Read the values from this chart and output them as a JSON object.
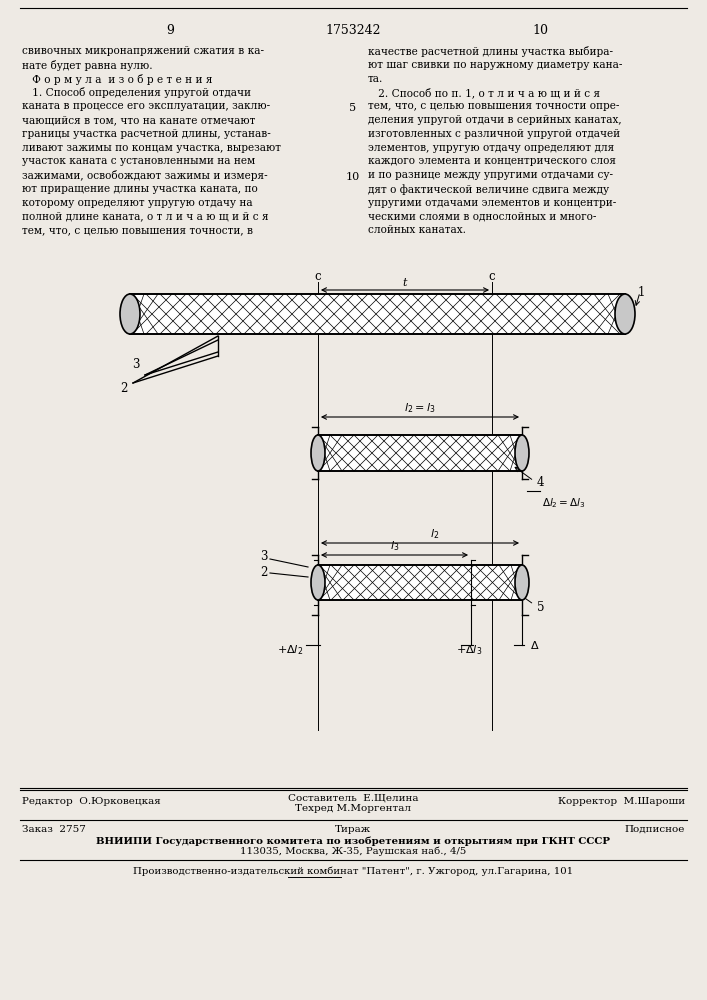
{
  "page_width": 7.07,
  "page_height": 10.0,
  "bg_color": "#eeeae4",
  "header_page_left": "9",
  "header_page_center": "1753242",
  "header_page_right": "10",
  "footer_line1_left": "Редактор  О.Юрковецкая",
  "footer_comp1": "Составитель  Е.Щелина",
  "footer_comp2": "Техред М.Моргентал",
  "footer_line1_right": "Корректор  М.Шароши",
  "footer_order": "Заказ  2757",
  "footer_tirazh": "Тираж",
  "footer_podp": "Подписное",
  "footer_line3": "ВНИИПИ Государственного комитета по изобретениям и открытиям при ГКНТ СССР",
  "footer_line4": "113035, Москва, Ж-35, Раушская наб., 4/5",
  "footer_line5": "Производственно-издательский комбинат \"Патент\", г. Ужгород, ул.Гагарина, 101"
}
